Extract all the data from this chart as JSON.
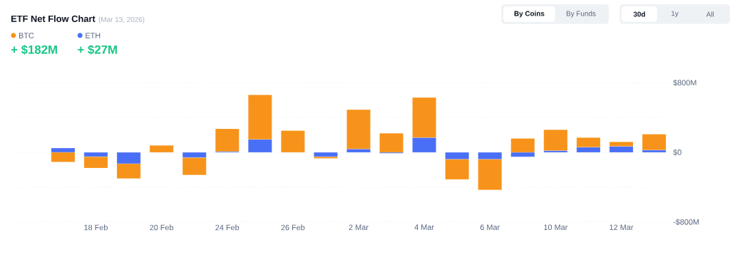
{
  "chart_data": {
    "type": "bar",
    "title": "ETF Net Flow Chart",
    "subtitle": "(Mar 13, 2026)",
    "categories": [
      null,
      "18 Feb",
      null,
      "20 Feb",
      null,
      "24 Feb",
      null,
      "26 Feb",
      null,
      "2 Mar",
      null,
      "4 Mar",
      null,
      "6 Mar",
      null,
      "10 Mar",
      null,
      "12 Mar",
      null
    ],
    "series": [
      {
        "name": "ETH",
        "color": "#4a6ff7",
        "values": [
          50,
          -50,
          -130,
          0,
          -60,
          10,
          150,
          0,
          -50,
          40,
          -10,
          170,
          -80,
          -80,
          -50,
          20,
          60,
          70,
          27
        ]
      },
      {
        "name": "BTC",
        "color": "#f7931a",
        "values": [
          -110,
          -130,
          -170,
          80,
          -200,
          260,
          510,
          250,
          -20,
          450,
          220,
          460,
          -230,
          -350,
          160,
          240,
          110,
          50,
          182
        ]
      }
    ],
    "stacked": true,
    "ylim": [
      -800,
      800
    ],
    "yticks": [
      {
        "value": -800,
        "label": "-$800M"
      },
      {
        "value": -400,
        "label": null
      },
      {
        "value": 0,
        "label": "$0"
      },
      {
        "value": 400,
        "label": null
      },
      {
        "value": 800,
        "label": "$800M"
      }
    ],
    "grid": "y",
    "legend": "top left",
    "annotations": [
      "+ $27M",
      "+ $182M",
      "By Coins",
      "By Funds",
      "30d",
      "1y",
      "All"
    ]
  }
}
